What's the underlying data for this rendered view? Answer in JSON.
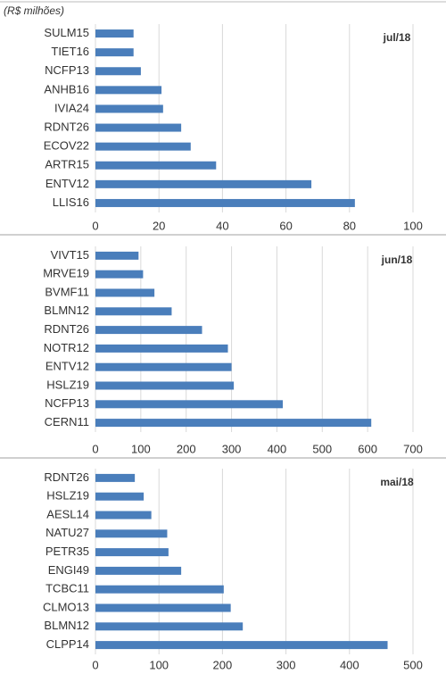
{
  "unit_note": "(R$ milhões)",
  "chart_data": [
    {
      "type": "bar",
      "orientation": "horizontal",
      "annotation": "jul/18",
      "color": "#4a7ebb",
      "grid": true,
      "categories": [
        "SULM15",
        "TIET16",
        "NCFP13",
        "ANHB16",
        "IVIA24",
        "RDNT26",
        "ECOV22",
        "ARTR15",
        "ENTV12",
        "LLIS16"
      ],
      "values": [
        12,
        12,
        14.3,
        20.8,
        21.3,
        27,
        30,
        38,
        68,
        81.7
      ],
      "xlim": [
        0,
        100
      ],
      "xticks": [
        0,
        20,
        40,
        60,
        80,
        100
      ]
    },
    {
      "type": "bar",
      "orientation": "horizontal",
      "annotation": "jun/18",
      "color": "#4a7ebb",
      "grid": true,
      "categories": [
        "VIVT15",
        "MRVE19",
        "BVMF11",
        "BLMN12",
        "RDNT26",
        "NOTR12",
        "ENTV12",
        "HSLZ19",
        "NCFP13",
        "CERN11"
      ],
      "values": [
        95,
        105,
        130,
        168,
        235,
        292,
        300,
        305,
        413,
        608
      ],
      "xlim": [
        0,
        700
      ],
      "xticks": [
        0,
        100,
        200,
        300,
        400,
        500,
        600,
        700
      ]
    },
    {
      "type": "bar",
      "orientation": "horizontal",
      "annotation": "mai/18",
      "color": "#4a7ebb",
      "grid": true,
      "categories": [
        "RDNT26",
        "HSLZ19",
        "AESL14",
        "NATU27",
        "PETR35",
        "ENGI49",
        "TCBC11",
        "CLMO13",
        "BLMN12",
        "CLPP14"
      ],
      "values": [
        62,
        76,
        88,
        113,
        115,
        135,
        202,
        213,
        232,
        460
      ],
      "xlim": [
        0,
        500
      ],
      "xticks": [
        0,
        100,
        200,
        300,
        400,
        500
      ]
    }
  ]
}
